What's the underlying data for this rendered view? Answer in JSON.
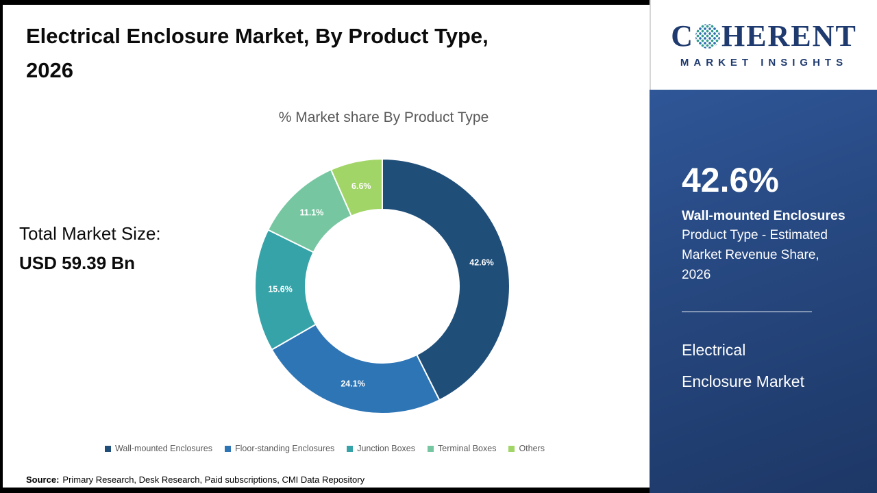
{
  "header": {
    "title_line1": "Electrical Enclosure Market, By Product Type,",
    "title_line2": "2026"
  },
  "logo": {
    "name_start": "C",
    "name_rest": "HERENT",
    "subtitle": "MARKET INSIGHTS"
  },
  "left_panel": {
    "total_label": "Total Market Size:",
    "total_value": "USD 59.39 Bn"
  },
  "chart_data": {
    "type": "pie",
    "donut": true,
    "title": "% Market share By Product Type",
    "start_angle_deg": 0,
    "direction": "clockwise",
    "categories": [
      "Wall-mounted Enclosures",
      "Floor-standing Enclosures",
      "Junction Boxes",
      "Terminal Boxes",
      "Others"
    ],
    "values": [
      42.6,
      24.1,
      15.6,
      11.1,
      6.6
    ],
    "labels": [
      "42.6%",
      "24.1%",
      "15.6%",
      "11.1%",
      "6.6%"
    ],
    "colors": [
      "#1f4e79",
      "#2e75b6",
      "#35a3a8",
      "#76c7a1",
      "#a2d567"
    ],
    "legend_position": "bottom"
  },
  "sidebar": {
    "highlight_value": "42.6%",
    "highlight_title": "Wall-mounted Enclosures",
    "highlight_desc": "Product Type - Estimated Market Revenue Share, 2026",
    "footer_line1": "Electrical",
    "footer_line2": "Enclosure Market"
  },
  "source": {
    "label": "Source:",
    "text": "Primary Research, Desk Research, Paid subscriptions, CMI Data Repository"
  }
}
